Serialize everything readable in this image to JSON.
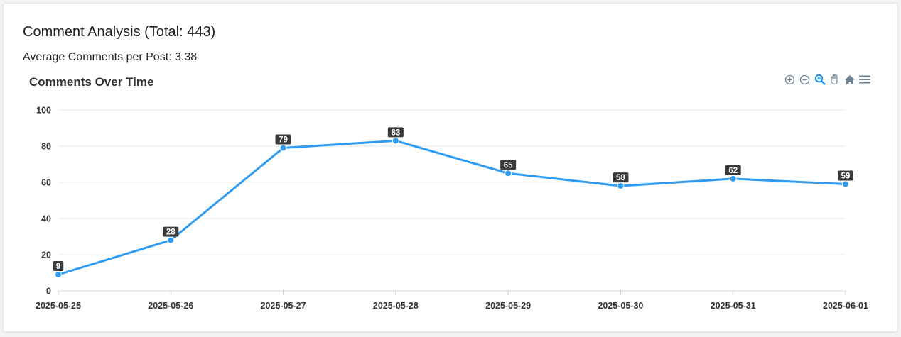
{
  "card": {
    "title": "Comment Analysis (Total: 443)",
    "subtitle": "Average Comments per Post: 3.38"
  },
  "toolbar": {
    "icons": [
      "zoom-in-icon",
      "zoom-out-icon",
      "zoom-selection-icon",
      "pan-icon",
      "home-reset-icon",
      "menu-icon"
    ],
    "active_icon": "zoom-selection-icon",
    "icon_color": "#6e8192",
    "active_color": "#008ffb"
  },
  "chart_data": {
    "type": "line",
    "title": "Comments Over Time",
    "categories": [
      "2025-05-25",
      "2025-05-26",
      "2025-05-27",
      "2025-05-28",
      "2025-05-29",
      "2025-05-30",
      "2025-05-31",
      "2025-06-01"
    ],
    "series": [
      {
        "values": [
          9,
          28,
          79,
          83,
          65,
          58,
          62,
          59
        ]
      }
    ],
    "ylim": [
      0,
      100
    ],
    "yticks": [
      0,
      20,
      40,
      60,
      80,
      100
    ],
    "grid": true,
    "data_labels": true,
    "line_color": "#2f9cf2",
    "label_bg": "#3a3a3a"
  }
}
